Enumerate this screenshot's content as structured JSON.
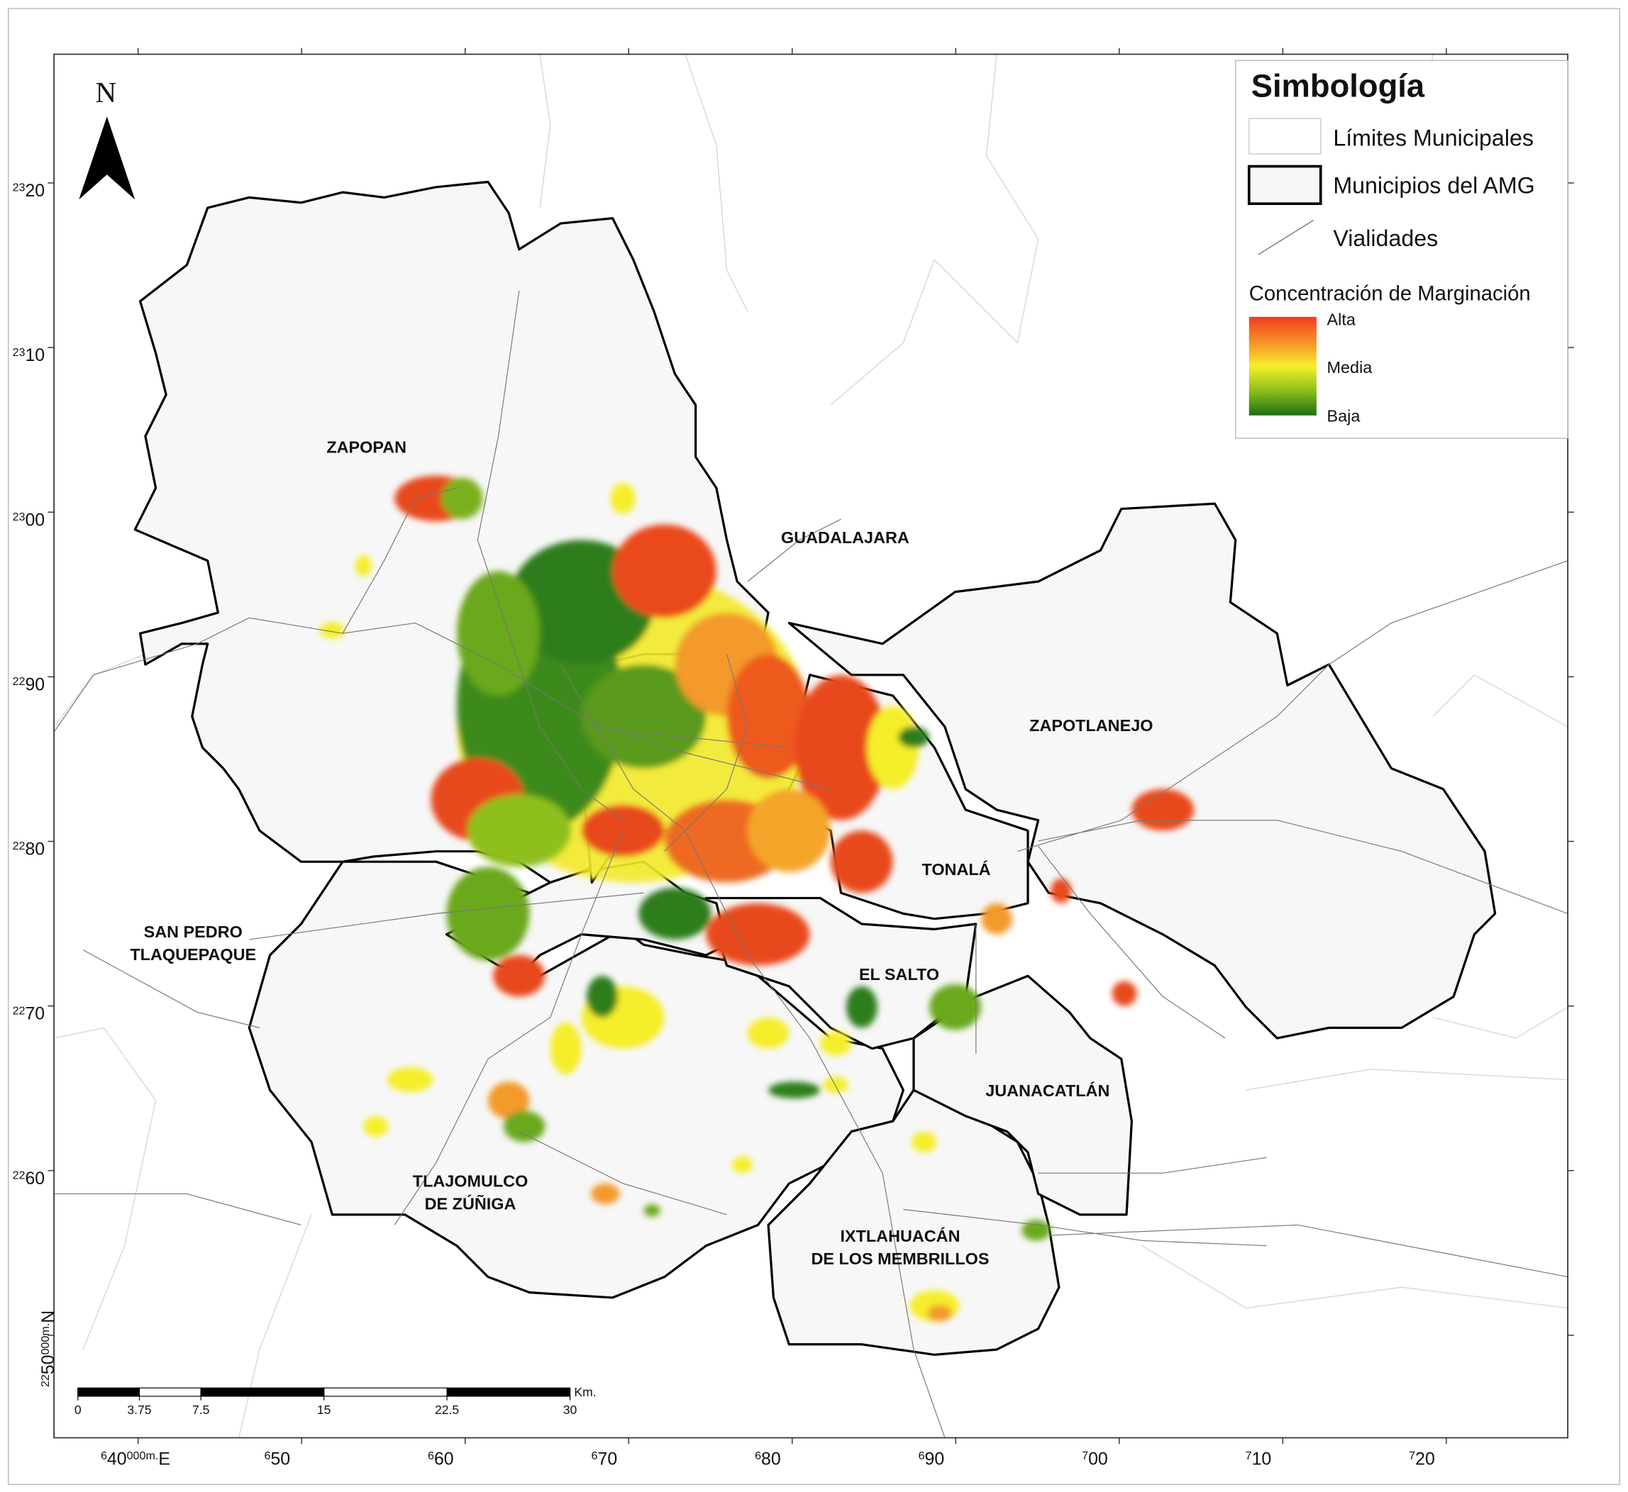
{
  "north_arrow": "N",
  "legend": {
    "title": "Simbología",
    "items": [
      "Límites Municipales",
      "Municipios del AMG",
      "Vialidades"
    ],
    "gradient_title": "Concentración de Marginación",
    "gradient_labels": [
      "Alta",
      "Media",
      "Baja"
    ]
  },
  "municipalities": [
    {
      "lines": [
        "ZAPOPAN"
      ]
    },
    {
      "lines": [
        "GUADALAJARA"
      ]
    },
    {
      "lines": [
        "ZAPOTLANEJO"
      ]
    },
    {
      "lines": [
        "TONALÁ"
      ]
    },
    {
      "lines": [
        "SAN PEDRO",
        "TLAQUEPAQUE"
      ]
    },
    {
      "lines": [
        "EL SALTO"
      ]
    },
    {
      "lines": [
        "JUANACATLÁN"
      ]
    },
    {
      "lines": [
        "TLAJOMULCO",
        "DE ZÚÑIGA"
      ]
    },
    {
      "lines": [
        "IXTLAHUACÁN",
        "DE LOS MEMBRILLOS"
      ]
    }
  ],
  "x_axis": {
    "ticks": [
      {
        "value": 640000,
        "parts": [
          "6",
          "40",
          "000m.",
          "E"
        ]
      },
      {
        "value": 650000,
        "parts": [
          "6",
          "50"
        ]
      },
      {
        "value": 660000,
        "parts": [
          "6",
          "60"
        ]
      },
      {
        "value": 670000,
        "parts": [
          "6",
          "70"
        ]
      },
      {
        "value": 680000,
        "parts": [
          "6",
          "80"
        ]
      },
      {
        "value": 690000,
        "parts": [
          "6",
          "90"
        ]
      },
      {
        "value": 700000,
        "parts": [
          "7",
          "00"
        ]
      },
      {
        "value": 710000,
        "parts": [
          "7",
          "10"
        ]
      },
      {
        "value": 720000,
        "parts": [
          "7",
          "20"
        ]
      }
    ]
  },
  "y_axis": {
    "ticks": [
      {
        "value": 2320000,
        "parts": [
          "23",
          "20"
        ]
      },
      {
        "value": 2310000,
        "parts": [
          "23",
          "10"
        ]
      },
      {
        "value": 2300000,
        "parts": [
          "23",
          "00"
        ]
      },
      {
        "value": 2290000,
        "parts": [
          "22",
          "90"
        ]
      },
      {
        "value": 2280000,
        "parts": [
          "22",
          "80"
        ]
      },
      {
        "value": 2270000,
        "parts": [
          "22",
          "70"
        ]
      },
      {
        "value": 2260000,
        "parts": [
          "22",
          "60"
        ]
      },
      {
        "value": 2250000,
        "parts": [
          "22",
          "50",
          "000m.",
          "N"
        ]
      }
    ]
  },
  "scale_bar": {
    "ticks": [
      0,
      3.75,
      7.5,
      15,
      22.5,
      30
    ],
    "unit": "Km."
  }
}
